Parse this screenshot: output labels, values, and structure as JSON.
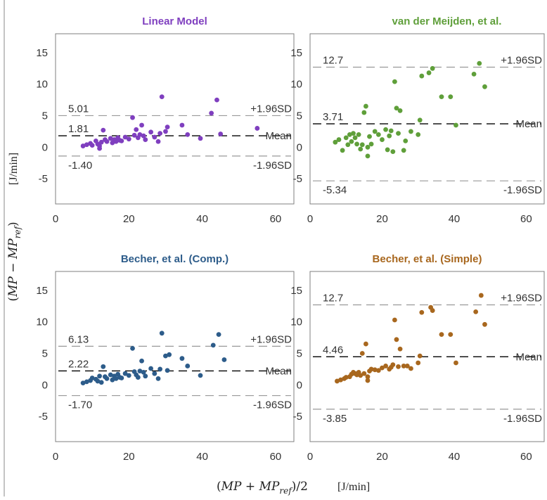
{
  "figure": {
    "xlabel": {
      "expr_open": "(",
      "mp": "MP",
      "plus": " + ",
      "mp_ref": "MP",
      "ref_sub": "ref",
      "close": ")/2",
      "unit": "[J/min]"
    },
    "ylabel": {
      "expr_open": "(",
      "mp": "MP",
      "minus": " − ",
      "mp_ref": "MP",
      "ref_sub": "ref",
      "close": ")",
      "unit": "[J/min]"
    }
  },
  "chart_data": [
    {
      "type": "scatter",
      "title": "Linear Model",
      "color": "#7f3fbf",
      "xlim": [
        0,
        65
      ],
      "ylim": [
        -9,
        18
      ],
      "xticks": [
        0,
        20,
        40,
        60
      ],
      "yticks": [
        -5,
        0,
        5,
        10,
        15
      ],
      "grid": false,
      "reference_lines": [
        {
          "label": "+1.96SD",
          "value_text": "5.01",
          "y": 5.01,
          "style": "dashed",
          "color": "#999999"
        },
        {
          "label": "Mean",
          "value_text": "1.81",
          "y": 1.81,
          "style": "dashed",
          "color": "#000000"
        },
        {
          "label": "-1.96SD",
          "value_text": "-1.40",
          "y": -1.4,
          "style": "dashed",
          "color": "#999999"
        }
      ],
      "points": [
        [
          7.5,
          0.2
        ],
        [
          8.5,
          0.4
        ],
        [
          9.5,
          0.6
        ],
        [
          10,
          0.3
        ],
        [
          11,
          1.0
        ],
        [
          11.5,
          0.5
        ],
        [
          12,
          0.2
        ],
        [
          12,
          -0.2
        ],
        [
          12.5,
          0.8
        ],
        [
          13,
          2.7
        ],
        [
          13.5,
          1.2
        ],
        [
          14,
          0.9
        ],
        [
          15,
          1.4
        ],
        [
          15.5,
          0.7
        ],
        [
          16,
          1.2
        ],
        [
          16.5,
          0.9
        ],
        [
          17,
          1.5
        ],
        [
          17.5,
          1.1
        ],
        [
          18,
          1.0
        ],
        [
          19,
          1.6
        ],
        [
          20,
          1.3
        ],
        [
          21,
          4.7
        ],
        [
          21.5,
          1.9
        ],
        [
          22,
          2.8
        ],
        [
          22.5,
          1.5
        ],
        [
          23,
          2.0
        ],
        [
          23.5,
          3.5
        ],
        [
          24,
          1.8
        ],
        [
          24.5,
          1.2
        ],
        [
          26,
          2.4
        ],
        [
          27,
          1.6
        ],
        [
          28,
          0.9
        ],
        [
          28.5,
          2.2
        ],
        [
          29,
          8.0
        ],
        [
          30,
          2.5
        ],
        [
          30.5,
          3.2
        ],
        [
          34.5,
          3.5
        ],
        [
          36,
          2.0
        ],
        [
          39.5,
          1.4
        ],
        [
          42.5,
          5.4
        ],
        [
          44,
          7.5
        ],
        [
          45,
          2.1
        ],
        [
          55,
          3.0
        ]
      ]
    },
    {
      "type": "scatter",
      "title": "van der Meijden, et al.",
      "color": "#5f9f3a",
      "xlim": [
        0,
        65
      ],
      "ylim": [
        -9,
        18
      ],
      "xticks": [
        0,
        20,
        40,
        60
      ],
      "yticks": [
        -5,
        0,
        5,
        10,
        15
      ],
      "grid": false,
      "reference_lines": [
        {
          "label": "+1.96SD",
          "value_text": "12.7",
          "y": 12.7,
          "style": "dashed",
          "color": "#999999"
        },
        {
          "label": "Mean",
          "value_text": "3.71",
          "y": 3.71,
          "style": "dashed",
          "color": "#000000"
        },
        {
          "label": "-1.96SD",
          "value_text": "-5.34",
          "y": -5.34,
          "style": "dashed",
          "color": "#999999"
        }
      ],
      "points": [
        [
          7,
          0.8
        ],
        [
          8,
          1.2
        ],
        [
          9,
          -0.5
        ],
        [
          10,
          1.5
        ],
        [
          10.5,
          0.4
        ],
        [
          11,
          2.0
        ],
        [
          11.5,
          0.9
        ],
        [
          12,
          2.2
        ],
        [
          12.5,
          1.5
        ],
        [
          13,
          0.5
        ],
        [
          13.5,
          2.0
        ],
        [
          14,
          -0.3
        ],
        [
          14.5,
          0.4
        ],
        [
          15,
          5.5
        ],
        [
          15.5,
          6.5
        ],
        [
          16,
          0.0
        ],
        [
          16,
          -1.4
        ],
        [
          16.5,
          1.7
        ],
        [
          17,
          0.5
        ],
        [
          18,
          2.5
        ],
        [
          19,
          2.0
        ],
        [
          20,
          1.2
        ],
        [
          21,
          2.8
        ],
        [
          21.5,
          -0.4
        ],
        [
          22,
          1.8
        ],
        [
          22.5,
          2.6
        ],
        [
          23,
          -0.7
        ],
        [
          23.5,
          10.4
        ],
        [
          24,
          6.2
        ],
        [
          24.5,
          2.2
        ],
        [
          25,
          5.8
        ],
        [
          26,
          -0.5
        ],
        [
          26.5,
          1.0
        ],
        [
          28,
          2.5
        ],
        [
          30,
          2.0
        ],
        [
          30.5,
          4.3
        ],
        [
          31,
          11.3
        ],
        [
          33,
          11.8
        ],
        [
          34,
          12.5
        ],
        [
          36.5,
          8.0
        ],
        [
          39,
          8.0
        ],
        [
          40.5,
          3.5
        ],
        [
          45.5,
          11.6
        ],
        [
          47,
          13.3
        ],
        [
          48.5,
          9.6
        ]
      ]
    },
    {
      "type": "scatter",
      "title": "Becher, et al. (Comp.)",
      "color": "#2d5c8a",
      "xlim": [
        0,
        65
      ],
      "ylim": [
        -9,
        18
      ],
      "xticks": [
        0,
        20,
        40,
        60
      ],
      "yticks": [
        -5,
        0,
        5,
        10,
        15
      ],
      "grid": false,
      "reference_lines": [
        {
          "label": "+1.96SD",
          "value_text": "6.13",
          "y": 6.13,
          "style": "dashed",
          "color": "#999999"
        },
        {
          "label": "Mean",
          "value_text": "2.22",
          "y": 2.22,
          "style": "dashed",
          "color": "#000000"
        },
        {
          "label": "-1.96SD",
          "value_text": "-1.70",
          "y": -1.7,
          "style": "dashed",
          "color": "#999999"
        }
      ],
      "points": [
        [
          7.5,
          0.3
        ],
        [
          8.5,
          0.5
        ],
        [
          9.5,
          0.7
        ],
        [
          10,
          1.1
        ],
        [
          11,
          0.9
        ],
        [
          11.5,
          0.6
        ],
        [
          12,
          1.4
        ],
        [
          12.5,
          0.4
        ],
        [
          13,
          2.9
        ],
        [
          13.5,
          1.3
        ],
        [
          14,
          1.0
        ],
        [
          15,
          1.6
        ],
        [
          15.5,
          0.8
        ],
        [
          16,
          1.4
        ],
        [
          16.5,
          1.0
        ],
        [
          17,
          1.7
        ],
        [
          17.5,
          1.2
        ],
        [
          18,
          1.1
        ],
        [
          19,
          1.8
        ],
        [
          20,
          1.5
        ],
        [
          21,
          5.8
        ],
        [
          21.5,
          2.1
        ],
        [
          22,
          1.6
        ],
        [
          22.5,
          1.2
        ],
        [
          23,
          2.2
        ],
        [
          23.5,
          3.8
        ],
        [
          24,
          2.0
        ],
        [
          24.5,
          1.4
        ],
        [
          26,
          2.6
        ],
        [
          27,
          1.8
        ],
        [
          28,
          1.0
        ],
        [
          28.5,
          2.5
        ],
        [
          29,
          8.2
        ],
        [
          30,
          4.6
        ],
        [
          30.5,
          2.3
        ],
        [
          31,
          4.8
        ],
        [
          34.5,
          4.2
        ],
        [
          36,
          3.0
        ],
        [
          39.5,
          1.5
        ],
        [
          43,
          6.3
        ],
        [
          44.5,
          8.0
        ],
        [
          46,
          4.0
        ]
      ]
    },
    {
      "type": "scatter",
      "title": "Becher, et al. (Simple)",
      "color": "#a8671e",
      "xlim": [
        0,
        65
      ],
      "ylim": [
        -9,
        18
      ],
      "xticks": [
        0,
        20,
        40,
        60
      ],
      "yticks": [
        -5,
        0,
        5,
        10,
        15
      ],
      "grid": false,
      "reference_lines": [
        {
          "label": "+1.96SD",
          "value_text": "12.7",
          "y": 12.7,
          "style": "dashed",
          "color": "#999999"
        },
        {
          "label": "Mean",
          "value_text": "4.46",
          "y": 4.46,
          "style": "dashed",
          "color": "#000000"
        },
        {
          "label": "-1.96SD",
          "value_text": "-3.85",
          "y": -3.85,
          "style": "dashed",
          "color": "#999999"
        }
      ],
      "points": [
        [
          7.5,
          0.6
        ],
        [
          8.5,
          0.8
        ],
        [
          9.5,
          1.0
        ],
        [
          10,
          1.2
        ],
        [
          11,
          1.3
        ],
        [
          11.5,
          1.7
        ],
        [
          12,
          2.0
        ],
        [
          12.5,
          1.8
        ],
        [
          13,
          1.6
        ],
        [
          13.5,
          2.0
        ],
        [
          14,
          1.5
        ],
        [
          14.5,
          5.0
        ],
        [
          15,
          1.8
        ],
        [
          15.5,
          6.5
        ],
        [
          16,
          1.3
        ],
        [
          16,
          0.7
        ],
        [
          16.5,
          2.2
        ],
        [
          17,
          2.5
        ],
        [
          18,
          2.4
        ],
        [
          19,
          2.3
        ],
        [
          20,
          2.7
        ],
        [
          21,
          3.0
        ],
        [
          22,
          2.5
        ],
        [
          22.5,
          2.8
        ],
        [
          23,
          3.2
        ],
        [
          23.5,
          10.3
        ],
        [
          24,
          7.2
        ],
        [
          24.5,
          2.9
        ],
        [
          25,
          5.7
        ],
        [
          26,
          3.0
        ],
        [
          27,
          3.0
        ],
        [
          28,
          2.6
        ],
        [
          30,
          3.5
        ],
        [
          30.5,
          4.6
        ],
        [
          31,
          11.5
        ],
        [
          33.5,
          12.3
        ],
        [
          34,
          11.8
        ],
        [
          36.5,
          8.0
        ],
        [
          39,
          8.0
        ],
        [
          40.5,
          3.5
        ],
        [
          46,
          11.6
        ],
        [
          47.5,
          14.2
        ],
        [
          48.5,
          9.6
        ]
      ]
    }
  ]
}
